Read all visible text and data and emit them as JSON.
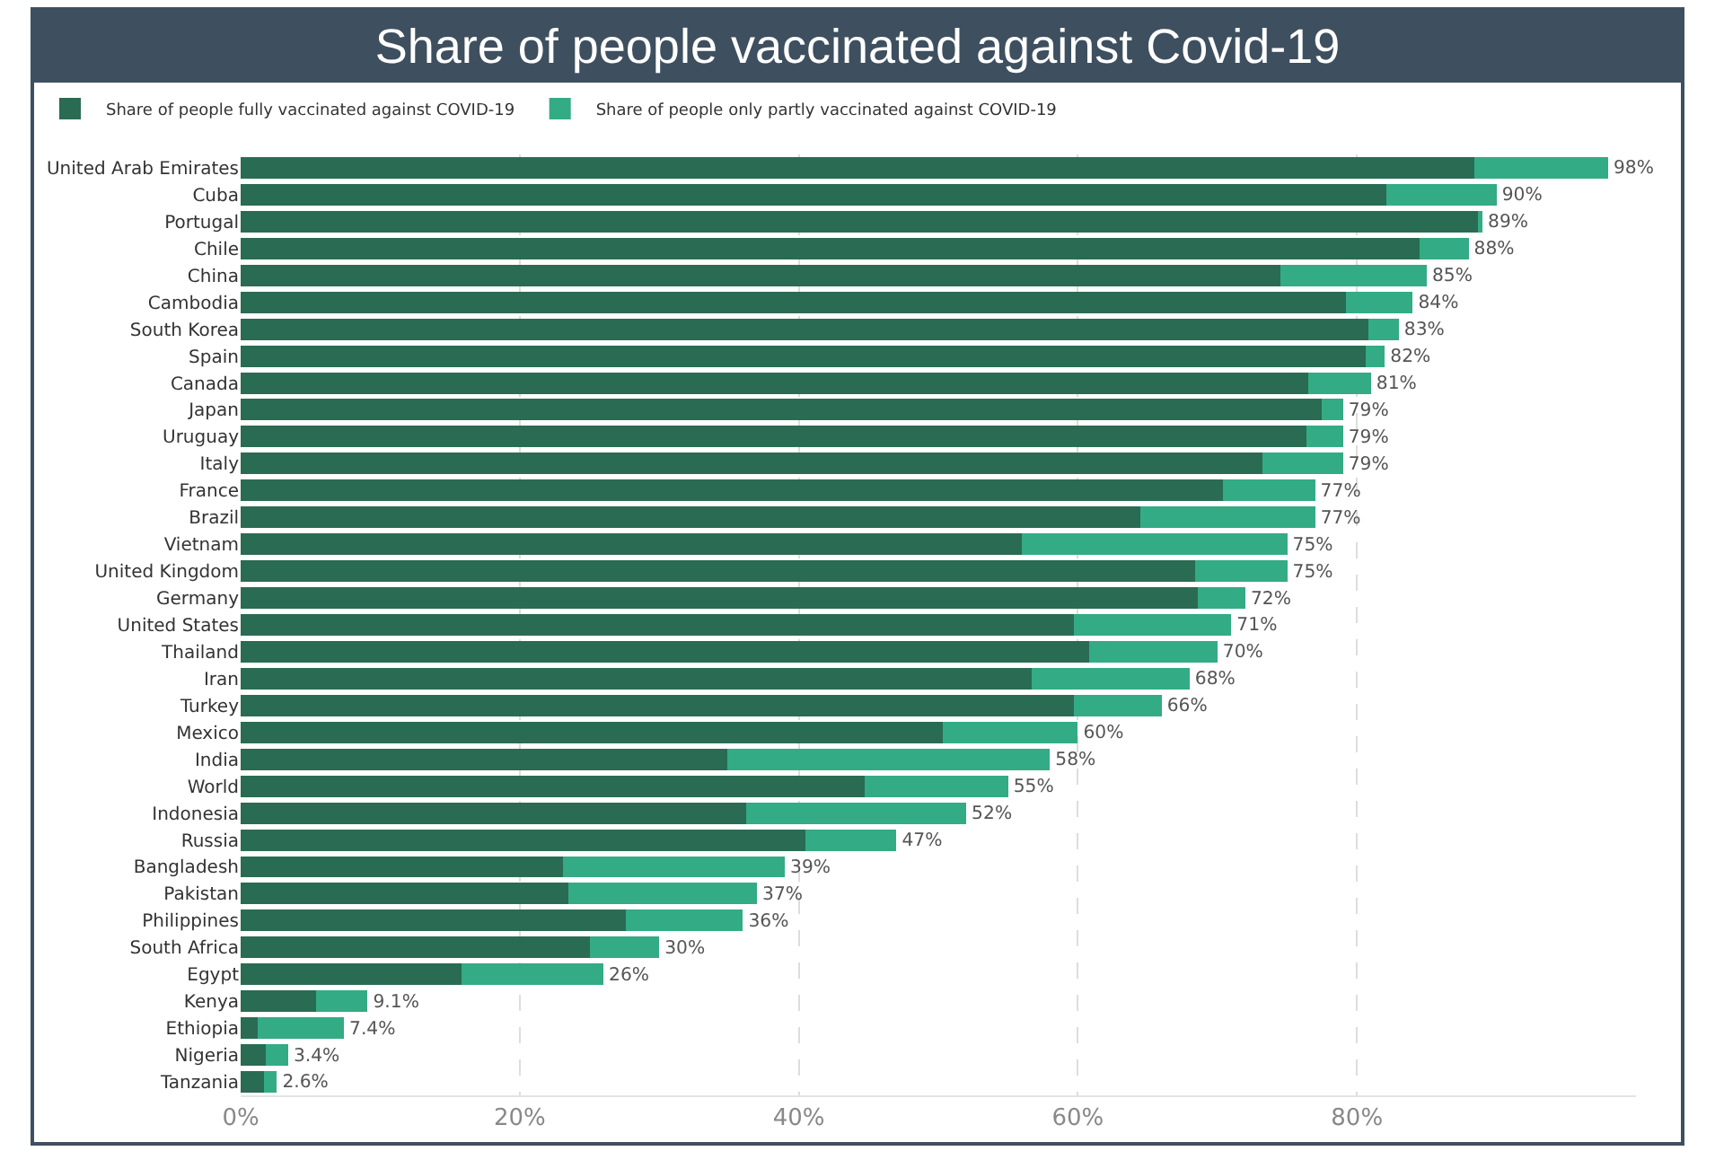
{
  "chart_data": {
    "type": "bar",
    "orientation": "horizontal",
    "stacked": true,
    "title": "Share of people vaccinated against Covid-19",
    "categories": [
      "United Arab Emirates",
      "Cuba",
      "Portugal",
      "Chile",
      "China",
      "Cambodia",
      "South Korea",
      "Spain",
      "Canada",
      "Japan",
      "Uruguay",
      "Italy",
      "France",
      "Brazil",
      "Vietnam",
      "United Kingdom",
      "Germany",
      "United States",
      "Thailand",
      "Iran",
      "Turkey",
      "Mexico",
      "India",
      "World",
      "Indonesia",
      "Russia",
      "Bangladesh",
      "Pakistan",
      "Philippines",
      "South Africa",
      "Egypt",
      "Kenya",
      "Ethiopia",
      "Nigeria",
      "Tanzania"
    ],
    "series": [
      {
        "name": "Share of people fully vaccinated against COVID-19",
        "color": "#2a6b53",
        "values": [
          88.4,
          82.1,
          88.7,
          84.5,
          74.5,
          79.2,
          80.8,
          80.6,
          76.5,
          77.5,
          76.4,
          73.2,
          70.4,
          64.5,
          56.0,
          68.4,
          68.6,
          59.7,
          60.8,
          56.7,
          59.7,
          50.3,
          34.9,
          44.7,
          36.2,
          40.5,
          23.1,
          23.5,
          27.6,
          25.0,
          15.8,
          5.4,
          1.2,
          1.8,
          1.7
        ]
      },
      {
        "name": "Share of people only partly vaccinated against COVID-19",
        "color": "#33ab84",
        "values": [
          9.6,
          7.9,
          0.3,
          3.5,
          10.5,
          4.8,
          2.2,
          1.4,
          4.5,
          1.5,
          2.6,
          5.8,
          6.6,
          12.5,
          19.0,
          6.6,
          3.4,
          11.3,
          9.2,
          11.3,
          6.3,
          9.7,
          23.1,
          10.3,
          15.8,
          6.5,
          15.9,
          13.5,
          8.4,
          5.0,
          10.2,
          3.7,
          6.2,
          1.6,
          0.9
        ]
      }
    ],
    "totals": [
      "98%",
      "90%",
      "89%",
      "88%",
      "85%",
      "84%",
      "83%",
      "82%",
      "81%",
      "79%",
      "79%",
      "79%",
      "77%",
      "77%",
      "75%",
      "75%",
      "72%",
      "71%",
      "70%",
      "68%",
      "66%",
      "60%",
      "58%",
      "55%",
      "52%",
      "47%",
      "39%",
      "37%",
      "36%",
      "30%",
      "26%",
      "9.1%",
      "7.4%",
      "3.4%",
      "2.6%"
    ],
    "xlim": [
      0,
      100
    ],
    "xticks": [
      {
        "value": 0,
        "label": "0%"
      },
      {
        "value": 20,
        "label": "20%"
      },
      {
        "value": 40,
        "label": "40%"
      },
      {
        "value": 60,
        "label": "60%"
      },
      {
        "value": 80,
        "label": "80%"
      }
    ],
    "grid": "x",
    "legend": "top left"
  }
}
